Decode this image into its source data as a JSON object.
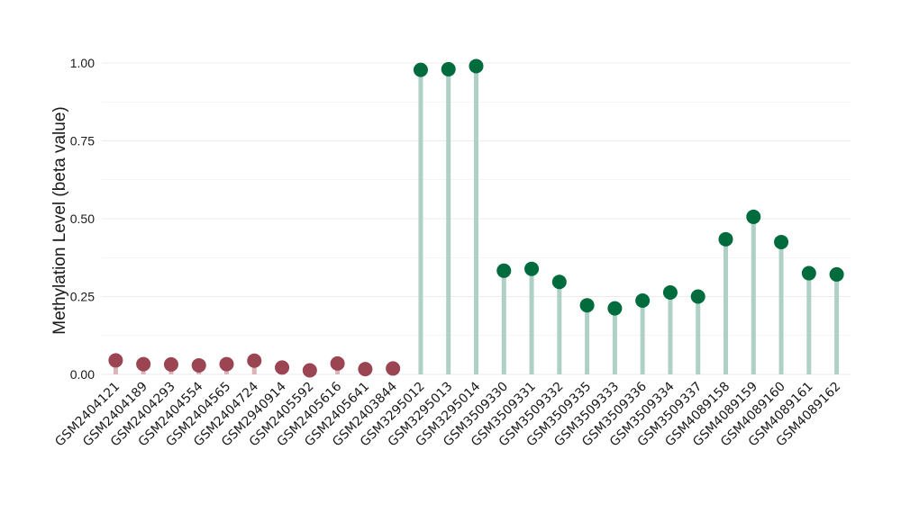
{
  "chart_data": {
    "type": "lollipop",
    "ylabel": "Methylation Level (beta value)",
    "xlabel": "",
    "ylim": [
      0,
      1
    ],
    "y_ticks": [
      {
        "value": 0.0,
        "label": "0.00"
      },
      {
        "value": 0.25,
        "label": "0.25"
      },
      {
        "value": 0.5,
        "label": "0.50"
      },
      {
        "value": 0.75,
        "label": "0.75"
      },
      {
        "value": 1.0,
        "label": "1.00"
      }
    ],
    "y_minor_gridlines": [
      0.125,
      0.375,
      0.625,
      0.875
    ],
    "grid": true,
    "colors": {
      "low_point": "#9b4452",
      "low_stem": "#dbb3b9",
      "high_point": "#006b3c",
      "high_stem": "#afd0c4",
      "grid": "#ebebeb",
      "text": "#1a1a1a"
    },
    "categories": [
      "GSM2404121",
      "GSM2404189",
      "GSM2404293",
      "GSM2404554",
      "GSM2404565",
      "GSM2404724",
      "GSM2940914",
      "GSM2405592",
      "GSM2405616",
      "GSM2405641",
      "GSM2403844",
      "GSM3295012",
      "GSM3295013",
      "GSM3295014",
      "GSM3509330",
      "GSM3509331",
      "GSM3509332",
      "GSM3509335",
      "GSM3509333",
      "GSM3509336",
      "GSM3509334",
      "GSM3509337",
      "GSM4089158",
      "GSM4089159",
      "GSM4089160",
      "GSM4089161",
      "GSM4089162"
    ],
    "values": [
      0.045,
      0.033,
      0.032,
      0.029,
      0.033,
      0.044,
      0.022,
      0.013,
      0.035,
      0.017,
      0.019,
      0.978,
      0.98,
      0.99,
      0.333,
      0.339,
      0.297,
      0.222,
      0.212,
      0.237,
      0.263,
      0.25,
      0.434,
      0.506,
      0.425,
      0.325,
      0.321
    ],
    "groups": [
      "low",
      "low",
      "low",
      "low",
      "low",
      "low",
      "low",
      "low",
      "low",
      "low",
      "low",
      "high",
      "high",
      "high",
      "high",
      "high",
      "high",
      "high",
      "high",
      "high",
      "high",
      "high",
      "high",
      "high",
      "high",
      "high",
      "high"
    ]
  }
}
